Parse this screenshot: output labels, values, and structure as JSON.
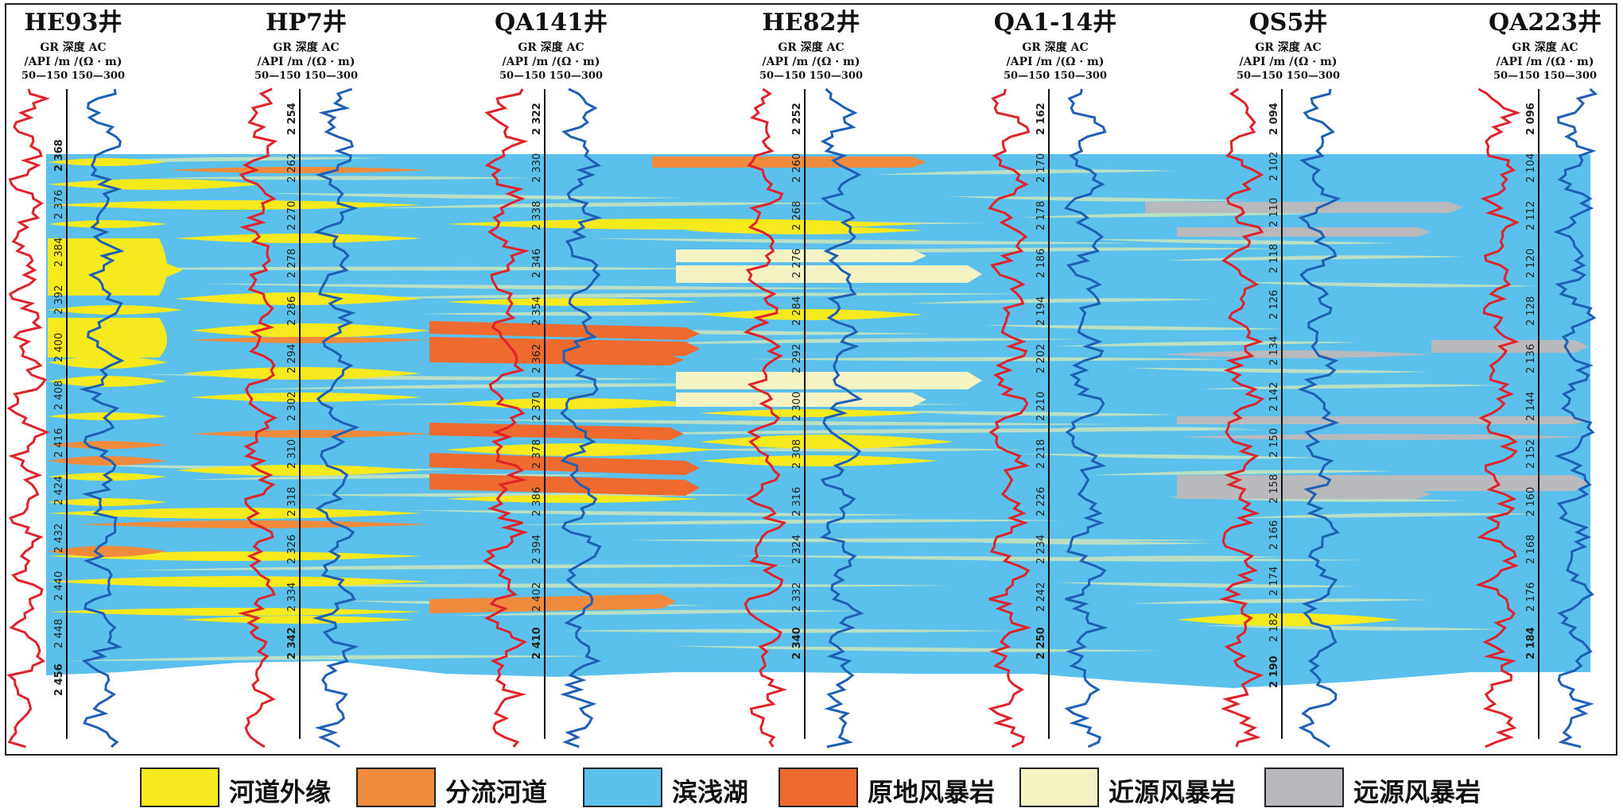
{
  "colors": {
    "river_edge": "#f6ea1e",
    "distributary_channel": "#f08a3c",
    "shore_shallow_lake": "#5bc0eb",
    "in_situ_tempestite": "#ef6a2e",
    "proximal_tempestite": "#f5f3c4",
    "distal_tempestite": "#b8b9bd",
    "gr_curve": "#e0232b",
    "ac_curve": "#1f5fb6",
    "thin_bed": "#b9e0c4"
  },
  "curve_header": {
    "gr": "GR",
    "gr_unit": "/API",
    "gr_range": "50—150",
    "depth": "深度",
    "depth_unit": "/m",
    "ac": "AC",
    "ac_unit": "/(Ω · m)",
    "ac_range": "150—300"
  },
  "wells": [
    {
      "name": "HE93井",
      "depths": [
        "2 368",
        "2 376",
        "2 384",
        "2 392",
        "2 400",
        "2 408",
        "2 416",
        "2 424",
        "2 432",
        "2 440",
        "2 448",
        "2 456"
      ]
    },
    {
      "name": "HP7井",
      "depths": [
        "2 254",
        "2 262",
        "2 270",
        "2 278",
        "2 286",
        "2 294",
        "2 302",
        "2 310",
        "2 318",
        "2 326",
        "2 334",
        "2 342"
      ]
    },
    {
      "name": "QA141井",
      "depths": [
        "2 322",
        "2 330",
        "2 338",
        "2 346",
        "2 354",
        "2 362",
        "2 370",
        "2 378",
        "2 386",
        "2 394",
        "2 402",
        "2 410"
      ]
    },
    {
      "name": "HE82井",
      "depths": [
        "2 252",
        "2 260",
        "2 268",
        "2 276",
        "2 284",
        "2 292",
        "2 300",
        "2 308",
        "2 316",
        "2 324",
        "2 332",
        "2 340"
      ]
    },
    {
      "name": "QA1-14井",
      "depths": [
        "2 162",
        "2 170",
        "2 178",
        "2 186",
        "2 194",
        "2 202",
        "2 210",
        "2 218",
        "2 226",
        "2 234",
        "2 242",
        "2 250"
      ]
    },
    {
      "name": "QS5井",
      "depths": [
        "2 094",
        "2 102",
        "2 110",
        "2 118",
        "2 126",
        "2 134",
        "2 142",
        "2 150",
        "2 158",
        "2 166",
        "2 174",
        "2 182",
        "2 190"
      ]
    },
    {
      "name": "QA223井",
      "depths": [
        "2 096",
        "2 104",
        "2 112",
        "2 120",
        "2 128",
        "2 136",
        "2 144",
        "2 152",
        "2 160",
        "2 168",
        "2 176",
        "2 184"
      ]
    }
  ],
  "legend": [
    {
      "label": "河道外缘",
      "color": "#f6ea1e"
    },
    {
      "label": "分流河道",
      "color": "#f08a3c"
    },
    {
      "label": "滨浅湖",
      "color": "#5bc0eb"
    },
    {
      "label": "原地风暴岩",
      "color": "#ef6a2e"
    },
    {
      "label": "近源风暴岩",
      "color": "#f5f3c4"
    },
    {
      "label": "远源风暴岩",
      "color": "#b8b9bd"
    }
  ]
}
